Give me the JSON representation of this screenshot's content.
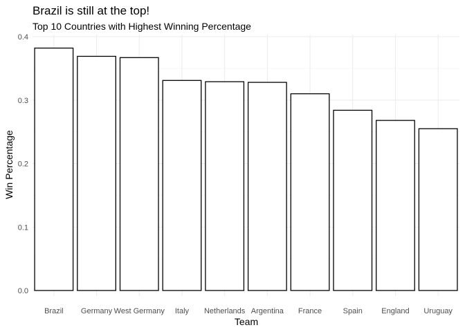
{
  "chart_data": {
    "type": "bar",
    "title": "Brazil is still at the top!",
    "subtitle": "Top 10 Countries with Highest Winning Percentage",
    "xlabel": "Team",
    "ylabel": "Win Percentage",
    "categories": [
      "Brazil",
      "Germany",
      "West Germany",
      "Italy",
      "Netherlands",
      "Argentina",
      "France",
      "Spain",
      "England",
      "Uruguay"
    ],
    "values": [
      0.382,
      0.369,
      0.367,
      0.331,
      0.329,
      0.328,
      0.31,
      0.284,
      0.268,
      0.255
    ],
    "ylim": [
      0,
      0.4
    ],
    "yticks": [
      "0.0",
      "0.1",
      "0.2",
      "0.3",
      "0.4"
    ],
    "grid": true,
    "bar_fill": "#ffffff",
    "bar_stroke": "#000000"
  }
}
